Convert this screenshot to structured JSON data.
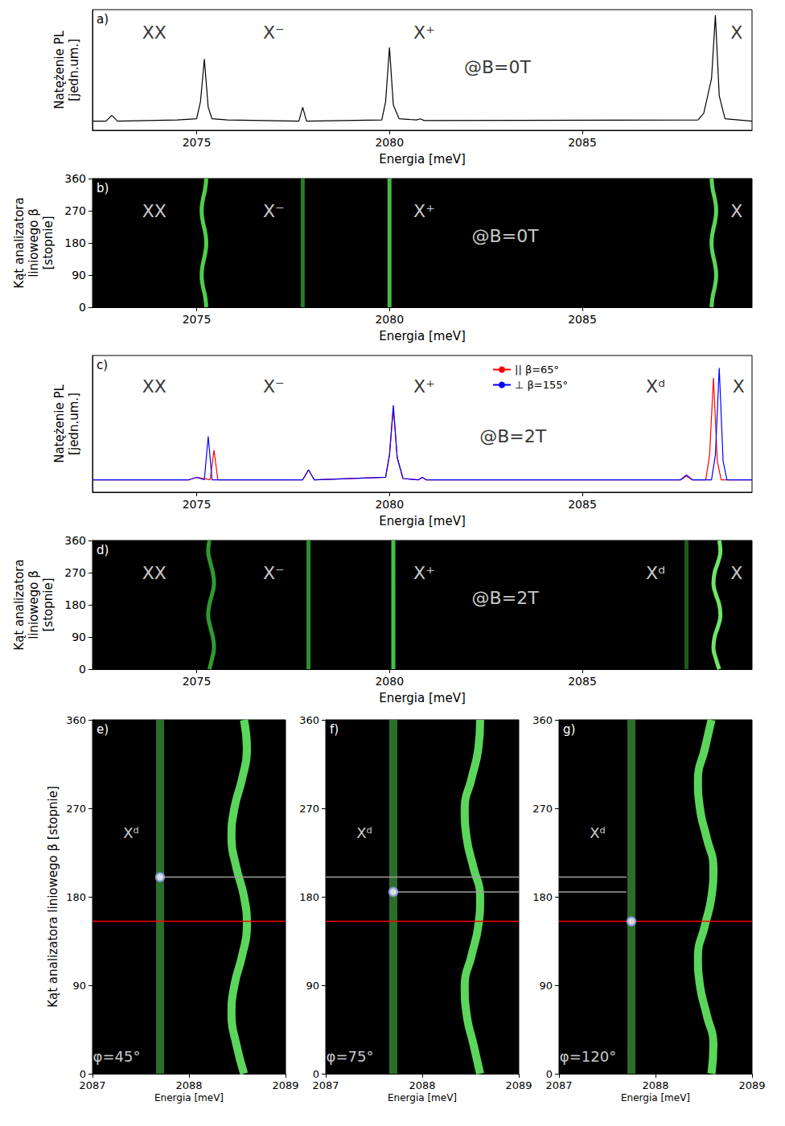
{
  "chart_data": [
    {
      "panel": "a)",
      "type": "line",
      "x_label": "Energia [meV]",
      "y_label": "Natężenie PL [jedn.um.]",
      "xlim": [
        2072.3,
        2089.4
      ],
      "xticks": [
        2075,
        2080,
        2085
      ],
      "ylim": [
        0,
        1.05
      ],
      "yticks": [],
      "tick_labels": "x",
      "grid": false,
      "series": [
        {
          "color": "#000000",
          "x": [
            2072.3,
            2072.65,
            2072.8,
            2072.95,
            2074.5,
            2075.0,
            2075.1,
            2075.2,
            2075.3,
            2075.4,
            2075.8,
            2077.65,
            2077.75,
            2077.85,
            2079.8,
            2079.9,
            2080.0,
            2080.1,
            2080.25,
            2080.7,
            2080.8,
            2080.9,
            2088.0,
            2088.15,
            2088.25,
            2088.35,
            2088.45,
            2088.55,
            2088.7,
            2089.4
          ],
          "y": [
            0.08,
            0.08,
            0.13,
            0.08,
            0.09,
            0.1,
            0.25,
            0.62,
            0.2,
            0.1,
            0.09,
            0.08,
            0.2,
            0.08,
            0.09,
            0.25,
            0.72,
            0.22,
            0.1,
            0.09,
            0.1,
            0.085,
            0.09,
            0.15,
            0.3,
            0.45,
            1.0,
            0.3,
            0.1,
            0.08
          ]
        }
      ],
      "annotations": [
        {
          "text": "XX",
          "x": 2073.9,
          "y": 0.85
        },
        {
          "text": "X⁻",
          "x": 2077.0,
          "y": 0.85
        },
        {
          "text": "X⁺",
          "x": 2080.9,
          "y": 0.85
        },
        {
          "text": "@B=0T",
          "x": 2082.8,
          "y": 0.55
        },
        {
          "text": "X",
          "x": 2089.0,
          "y": 0.85
        }
      ]
    },
    {
      "panel": "b)",
      "type": "polarization",
      "x_label": "Energia [meV]",
      "y_label": "Kąt analizatora liniowego β [stopnie]",
      "xlim": [
        2072.3,
        2089.4
      ],
      "xticks": [
        2075,
        2080,
        2085
      ],
      "ylim": [
        0,
        360
      ],
      "yticks": [
        0,
        90,
        180,
        270,
        360
      ],
      "grid": false,
      "series": [
        {
          "color": "#4fcf4a",
          "x": [
            2075.25,
            2075.22,
            2075.16,
            2075.13,
            2075.16,
            2075.22,
            2075.25,
            2075.22,
            2075.16,
            2075.13,
            2075.16,
            2075.22,
            2075.25
          ],
          "y": [
            0,
            30,
            60,
            90,
            120,
            150,
            180,
            210,
            240,
            270,
            300,
            330,
            360
          ]
        },
        {
          "color": "#2a7a2a",
          "x": [
            2077.75,
            2077.75
          ],
          "y": [
            0,
            360
          ]
        },
        {
          "color": "#46b846",
          "x": [
            2080.0,
            2080.0
          ],
          "y": [
            0,
            360
          ]
        },
        {
          "color": "#5ad65a",
          "x": [
            2088.35,
            2088.38,
            2088.44,
            2088.47,
            2088.44,
            2088.38,
            2088.35,
            2088.38,
            2088.44,
            2088.47,
            2088.44,
            2088.38,
            2088.35
          ],
          "y": [
            0,
            30,
            60,
            90,
            120,
            150,
            180,
            210,
            240,
            270,
            300,
            330,
            360
          ]
        }
      ],
      "annotations": [
        {
          "text": "XX",
          "x": 2073.9,
          "y": 270
        },
        {
          "text": "X⁻",
          "x": 2077.0,
          "y": 270
        },
        {
          "text": "X⁺",
          "x": 2080.9,
          "y": 270
        },
        {
          "text": "@B=0T",
          "x": 2083.0,
          "y": 200
        },
        {
          "text": "X",
          "x": 2089.0,
          "y": 270
        }
      ]
    },
    {
      "panel": "c)",
      "type": "line",
      "x_label": "Energia [meV]",
      "y_label": "Natężenie PL [jedn.um.]",
      "xlim": [
        2072.3,
        2089.4
      ],
      "xticks": [
        2075,
        2080,
        2085
      ],
      "ylim": [
        0,
        1.1
      ],
      "yticks": [],
      "tick_labels": "x",
      "grid": false,
      "legend": "top",
      "series": [
        {
          "name": "|| β=65°",
          "color": "#ff0000",
          "x": [
            2072.3,
            2074.8,
            2075.0,
            2075.35,
            2075.45,
            2075.55,
            2075.8,
            2077.75,
            2077.9,
            2078.05,
            2079.9,
            2080.0,
            2080.1,
            2080.2,
            2080.35,
            2080.75,
            2080.85,
            2080.95,
            2087.55,
            2087.7,
            2087.85,
            2088.2,
            2088.3,
            2088.4,
            2088.5,
            2088.6,
            2089.4
          ],
          "y": [
            0.1,
            0.1,
            0.12,
            0.1,
            0.34,
            0.1,
            0.1,
            0.1,
            0.18,
            0.1,
            0.12,
            0.3,
            0.68,
            0.28,
            0.11,
            0.1,
            0.12,
            0.1,
            0.1,
            0.13,
            0.1,
            0.1,
            0.3,
            0.92,
            0.25,
            0.1,
            0.1
          ]
        },
        {
          "name": "⊥ β=155°",
          "color": "#0000ff",
          "x": [
            2072.3,
            2074.8,
            2075.0,
            2075.2,
            2075.3,
            2075.4,
            2075.8,
            2077.75,
            2077.9,
            2078.05,
            2079.9,
            2080.0,
            2080.1,
            2080.2,
            2080.35,
            2080.75,
            2080.85,
            2080.95,
            2087.55,
            2087.7,
            2087.85,
            2088.35,
            2088.45,
            2088.55,
            2088.65,
            2088.75,
            2089.4
          ],
          "y": [
            0.1,
            0.1,
            0.12,
            0.1,
            0.45,
            0.1,
            0.1,
            0.1,
            0.18,
            0.1,
            0.12,
            0.3,
            0.7,
            0.28,
            0.11,
            0.1,
            0.12,
            0.1,
            0.1,
            0.14,
            0.1,
            0.1,
            0.3,
            1.0,
            0.25,
            0.1,
            0.1
          ]
        }
      ],
      "annotations": [
        {
          "text": "XX",
          "x": 2073.9,
          "y": 0.85
        },
        {
          "text": "X⁻",
          "x": 2077.0,
          "y": 0.85
        },
        {
          "text": "X⁺",
          "x": 2080.9,
          "y": 0.85
        },
        {
          "text": "@B=2T",
          "x": 2083.2,
          "y": 0.45
        },
        {
          "text": "Xᵈ",
          "x": 2086.9,
          "y": 0.85
        },
        {
          "text": "X",
          "x": 2089.05,
          "y": 0.85
        }
      ]
    },
    {
      "panel": "d)",
      "type": "polarization",
      "x_label": "Energia [meV]",
      "y_label": "Kąt analizatora liniowego β [stopnie]",
      "xlim": [
        2072.3,
        2089.4
      ],
      "xticks": [
        2075,
        2080,
        2085
      ],
      "ylim": [
        0,
        360
      ],
      "yticks": [
        0,
        90,
        180,
        270,
        360
      ],
      "grid": false,
      "series": [
        {
          "color": "#2f9a2f",
          "x": [
            2075.33,
            2075.4,
            2075.45,
            2075.42,
            2075.35,
            2075.3,
            2075.33,
            2075.4,
            2075.45,
            2075.42,
            2075.35,
            2075.3,
            2075.33
          ],
          "y": [
            0,
            30,
            60,
            90,
            120,
            150,
            180,
            210,
            240,
            270,
            300,
            330,
            360
          ]
        },
        {
          "color": "#2f8f2f",
          "x": [
            2077.9,
            2077.9
          ],
          "y": [
            0,
            360
          ]
        },
        {
          "color": "#45c045",
          "x": [
            2080.1,
            2080.1
          ],
          "y": [
            0,
            360
          ]
        },
        {
          "color": "#1e5a1e",
          "x": [
            2087.7,
            2087.7
          ],
          "y": [
            0,
            360
          ]
        },
        {
          "color": "#6fe46a",
          "x": [
            2088.55,
            2088.46,
            2088.4,
            2088.43,
            2088.52,
            2088.58,
            2088.55,
            2088.46,
            2088.4,
            2088.43,
            2088.52,
            2088.58,
            2088.55
          ],
          "y": [
            0,
            30,
            60,
            90,
            120,
            150,
            180,
            210,
            240,
            270,
            300,
            330,
            360
          ]
        }
      ],
      "annotations": [
        {
          "text": "XX",
          "x": 2073.9,
          "y": 270
        },
        {
          "text": "X⁻",
          "x": 2077.0,
          "y": 270
        },
        {
          "text": "X⁺",
          "x": 2080.9,
          "y": 270
        },
        {
          "text": "@B=2T",
          "x": 2083.0,
          "y": 200
        },
        {
          "text": "Xᵈ",
          "x": 2086.9,
          "y": 270
        },
        {
          "text": "X",
          "x": 2089.0,
          "y": 270
        }
      ]
    },
    {
      "panel": "e)",
      "type": "polarization",
      "x_label": "Energia [meV]",
      "y_label": "Kąt analizatora liniowego β [stopnie]",
      "xlim": [
        2087,
        2089
      ],
      "xticks": [
        2087,
        2088,
        2089
      ],
      "ylim": [
        0,
        360
      ],
      "yticks": [
        0,
        90,
        180,
        270,
        360
      ],
      "grid": false,
      "series": [
        {
          "color": "#2b6e2b",
          "x": [
            2087.7,
            2087.7
          ],
          "y": [
            0,
            360
          ]
        },
        {
          "color": "#5bd65b",
          "x": [
            2088.57,
            2088.49,
            2088.44,
            2088.47,
            2088.55,
            2088.6,
            2088.57,
            2088.49,
            2088.44,
            2088.47,
            2088.55,
            2088.6,
            2088.57
          ],
          "y": [
            0,
            30,
            60,
            90,
            120,
            150,
            180,
            210,
            240,
            270,
            300,
            330,
            360
          ]
        }
      ],
      "hlines": [
        {
          "y": 155,
          "x": [
            2087,
            2089
          ],
          "color": "#ff0000"
        },
        {
          "y": 200,
          "x": [
            2087.7,
            2089
          ],
          "color": "#a0a0a0"
        }
      ],
      "markers": [
        {
          "x": 2087.7,
          "y": 200,
          "color": "#8fa0f0"
        }
      ],
      "annotations": [
        {
          "text": "Xᵈ",
          "x": 2087.4,
          "y": 245
        },
        {
          "text": "φ=45°",
          "x": 2087.25,
          "y": 18
        }
      ]
    },
    {
      "panel": "f)",
      "type": "polarization",
      "x_label": "Energia [meV]",
      "xlim": [
        2087,
        2089
      ],
      "xticks": [
        2087,
        2088,
        2089
      ],
      "ylim": [
        0,
        360
      ],
      "yticks": [
        0,
        90,
        180,
        270,
        360
      ],
      "grid": false,
      "series": [
        {
          "color": "#2b6e2b",
          "x": [
            2087.7,
            2087.7
          ],
          "y": [
            0,
            360
          ]
        },
        {
          "color": "#5bd65b",
          "x": [
            2088.6,
            2088.53,
            2088.46,
            2088.44,
            2088.51,
            2088.58,
            2088.6,
            2088.53,
            2088.46,
            2088.44,
            2088.51,
            2088.58,
            2088.6
          ],
          "y": [
            0,
            30,
            60,
            90,
            120,
            150,
            180,
            210,
            240,
            270,
            300,
            330,
            360
          ]
        }
      ],
      "hlines": [
        {
          "y": 155,
          "x": [
            2087,
            2089
          ],
          "color": "#ff0000"
        },
        {
          "y": 200,
          "x": [
            2087,
            2089
          ],
          "color": "#a0a0a0"
        },
        {
          "y": 185,
          "x": [
            2087.7,
            2089
          ],
          "color": "#a0a0a0"
        }
      ],
      "markers": [
        {
          "x": 2087.7,
          "y": 185,
          "color": "#8fa0f0"
        }
      ],
      "annotations": [
        {
          "text": "Xᵈ",
          "x": 2087.4,
          "y": 245
        },
        {
          "text": "φ=75°",
          "x": 2087.25,
          "y": 18
        }
      ]
    },
    {
      "panel": "g)",
      "type": "polarization",
      "x_label": "Energia [meV]",
      "xlim": [
        2087,
        2089
      ],
      "xticks": [
        2087,
        2088,
        2089
      ],
      "ylim": [
        0,
        360
      ],
      "yticks": [
        0,
        90,
        180,
        270,
        360
      ],
      "grid": false,
      "series": [
        {
          "color": "#2b6e2b",
          "x": [
            2087.75,
            2087.75
          ],
          "y": [
            0,
            360
          ]
        },
        {
          "color": "#5bd65b",
          "x": [
            2088.58,
            2088.6,
            2088.53,
            2088.46,
            2088.44,
            2088.51,
            2088.58,
            2088.6,
            2088.53,
            2088.46,
            2088.44,
            2088.51,
            2088.58
          ],
          "y": [
            0,
            30,
            60,
            90,
            120,
            150,
            180,
            210,
            240,
            270,
            300,
            330,
            360
          ]
        }
      ],
      "hlines": [
        {
          "y": 155,
          "x": [
            2087,
            2089
          ],
          "color": "#ff0000"
        },
        {
          "y": 200,
          "x": [
            2087,
            2087.7
          ],
          "color": "#a0a0a0"
        },
        {
          "y": 185,
          "x": [
            2087,
            2087.7
          ],
          "color": "#a0a0a0"
        }
      ],
      "markers": [
        {
          "x": 2087.75,
          "y": 155,
          "color": "#8fa0f0"
        }
      ],
      "annotations": [
        {
          "text": "Xᵈ",
          "x": 2087.4,
          "y": 245
        },
        {
          "text": "φ=120°",
          "x": 2087.3,
          "y": 18
        }
      ]
    }
  ]
}
